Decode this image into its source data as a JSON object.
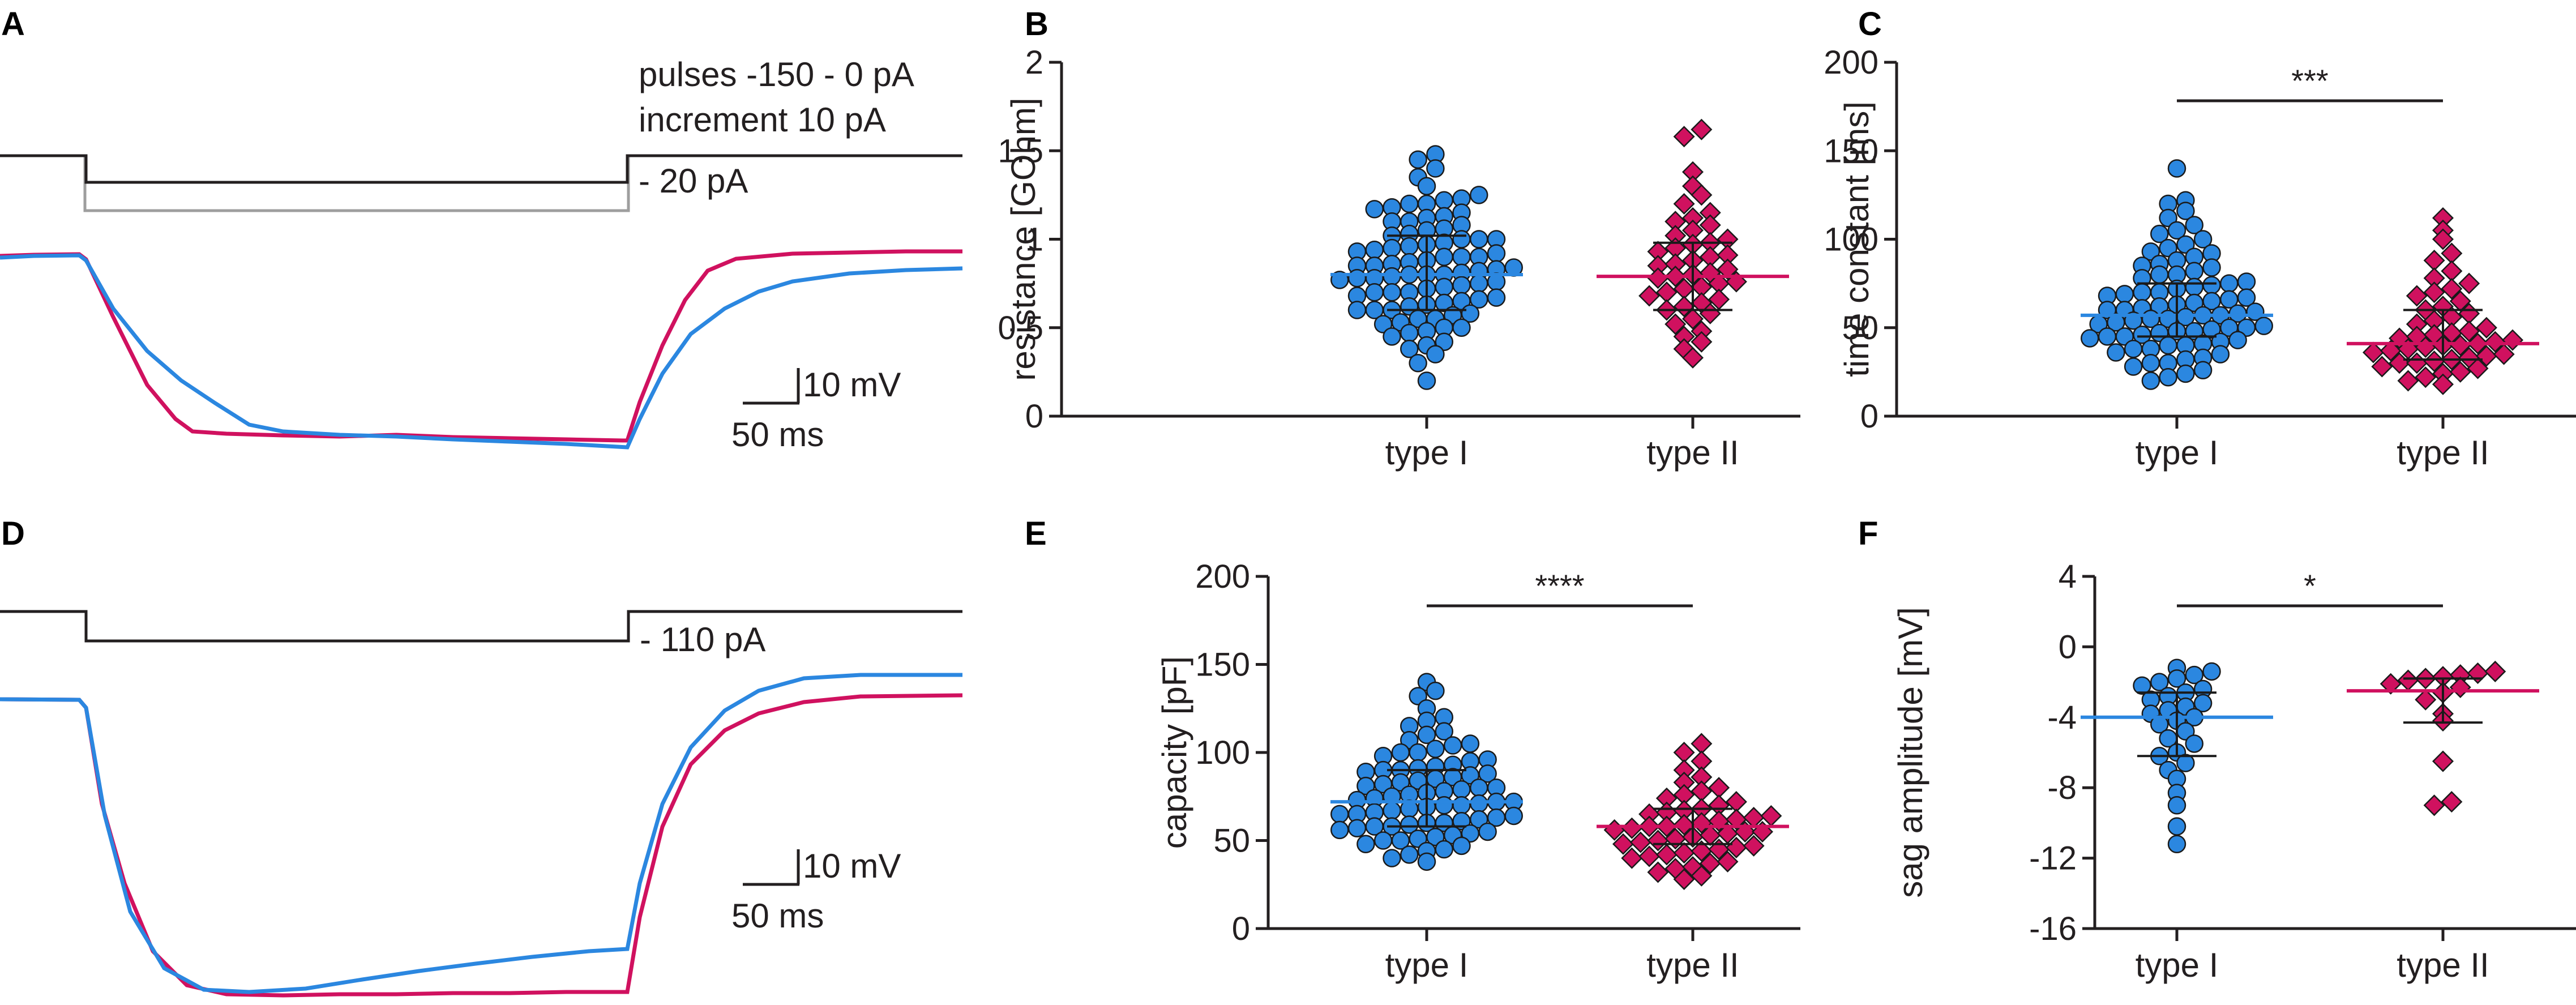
{
  "colors": {
    "type1": "#2b87e0",
    "type2": "#d0115f",
    "axis": "#231f20",
    "protocol_gray": "#9e9e9e"
  },
  "panel_labels": {
    "a": "A",
    "b": "B",
    "c": "C",
    "d": "D",
    "e": "E",
    "f": "F"
  },
  "trace_panels": {
    "a": {
      "protocol_line1": "pulses -150 - 0 pA",
      "protocol_line2": "increment 10 pA",
      "step_label": "- 20 pA",
      "scale_voltage": "10 mV",
      "scale_time": "50 ms"
    },
    "d": {
      "step_label": "- 110 pA",
      "scale_voltage": "10 mV",
      "scale_time": "50 ms"
    }
  },
  "chart_data": [
    {
      "id": "b",
      "type": "scatter",
      "title": "",
      "ylabel": "resistance [GOhm]",
      "categories": [
        "type I",
        "type II"
      ],
      "ylim": [
        0,
        2
      ],
      "yticks": [
        0,
        0.5,
        1,
        1.5,
        2
      ],
      "ytick_labels": [
        "0",
        "0.5",
        "1",
        "1.5",
        "2"
      ],
      "groups": [
        {
          "name": "type I",
          "marker": "circle",
          "median": 0.8,
          "q1": 0.6,
          "q3": 1.02,
          "values": [
            0.2,
            0.3,
            0.35,
            0.38,
            0.4,
            0.42,
            0.45,
            0.47,
            0.48,
            0.5,
            0.5,
            0.52,
            0.53,
            0.55,
            0.55,
            0.57,
            0.58,
            0.6,
            0.6,
            0.6,
            0.62,
            0.63,
            0.64,
            0.65,
            0.66,
            0.67,
            0.68,
            0.7,
            0.7,
            0.7,
            0.72,
            0.73,
            0.74,
            0.75,
            0.76,
            0.77,
            0.78,
            0.78,
            0.79,
            0.8,
            0.8,
            0.8,
            0.81,
            0.82,
            0.83,
            0.84,
            0.85,
            0.85,
            0.86,
            0.87,
            0.88,
            0.9,
            0.9,
            0.9,
            0.92,
            0.93,
            0.94,
            0.95,
            0.96,
            0.97,
            0.98,
            1.0,
            1.0,
            1.0,
            1.02,
            1.03,
            1.05,
            1.06,
            1.08,
            1.1,
            1.1,
            1.12,
            1.13,
            1.15,
            1.17,
            1.18,
            1.2,
            1.2,
            1.22,
            1.23,
            1.25,
            1.3,
            1.35,
            1.4,
            1.45,
            1.48
          ]
        },
        {
          "name": "type II",
          "marker": "diamond",
          "median": 0.79,
          "q1": 0.6,
          "q3": 0.98,
          "values": [
            0.33,
            0.38,
            0.42,
            0.45,
            0.48,
            0.52,
            0.55,
            0.58,
            0.6,
            0.62,
            0.64,
            0.66,
            0.68,
            0.7,
            0.72,
            0.73,
            0.75,
            0.76,
            0.78,
            0.79,
            0.8,
            0.81,
            0.83,
            0.85,
            0.86,
            0.88,
            0.9,
            0.91,
            0.93,
            0.95,
            0.97,
            0.98,
            1.0,
            1.02,
            1.05,
            1.08,
            1.1,
            1.12,
            1.15,
            1.2,
            1.25,
            1.3,
            1.38,
            1.58,
            1.62
          ]
        }
      ],
      "significance": null
    },
    {
      "id": "c",
      "type": "scatter",
      "title": "",
      "ylabel": "time constant [ms]",
      "categories": [
        "type I",
        "type II"
      ],
      "ylim": [
        0,
        200
      ],
      "yticks": [
        0,
        50,
        100,
        150,
        200
      ],
      "ytick_labels": [
        "0",
        "50",
        "100",
        "150",
        "200"
      ],
      "groups": [
        {
          "name": "type I",
          "marker": "circle",
          "median": 57,
          "q1": 45,
          "q3": 75,
          "values": [
            20,
            22,
            24,
            26,
            28,
            30,
            30,
            32,
            33,
            35,
            36,
            38,
            38,
            40,
            40,
            41,
            42,
            43,
            44,
            45,
            45,
            46,
            47,
            48,
            48,
            49,
            50,
            50,
            51,
            52,
            53,
            54,
            55,
            55,
            56,
            57,
            57,
            58,
            59,
            60,
            60,
            61,
            62,
            63,
            64,
            65,
            66,
            67,
            68,
            69,
            70,
            70,
            72,
            73,
            74,
            75,
            76,
            78,
            80,
            80,
            82,
            84,
            85,
            86,
            88,
            90,
            92,
            93,
            95,
            97,
            100,
            103,
            105,
            108,
            112,
            116,
            120,
            122,
            140
          ]
        },
        {
          "name": "type II",
          "marker": "diamond",
          "median": 41,
          "q1": 32,
          "q3": 60,
          "values": [
            18,
            20,
            22,
            24,
            25,
            27,
            28,
            30,
            30,
            31,
            32,
            33,
            34,
            35,
            36,
            37,
            38,
            39,
            40,
            40,
            41,
            42,
            43,
            44,
            45,
            46,
            47,
            48,
            50,
            52,
            54,
            56,
            58,
            60,
            62,
            65,
            68,
            70,
            72,
            75,
            78,
            82,
            88,
            92,
            100,
            105,
            112
          ]
        }
      ],
      "significance": {
        "label": "***"
      }
    },
    {
      "id": "e",
      "type": "scatter",
      "title": "",
      "ylabel": "capacity [pF]",
      "categories": [
        "type I",
        "type II"
      ],
      "ylim": [
        0,
        200
      ],
      "yticks": [
        0,
        50,
        100,
        150,
        200
      ],
      "ytick_labels": [
        "0",
        "50",
        "100",
        "150",
        "200"
      ],
      "groups": [
        {
          "name": "type I",
          "marker": "circle",
          "median": 72,
          "q1": 58,
          "q3": 90,
          "values": [
            38,
            40,
            42,
            44,
            45,
            47,
            48,
            50,
            50,
            51,
            52,
            53,
            54,
            55,
            56,
            57,
            58,
            58,
            59,
            60,
            60,
            61,
            62,
            63,
            64,
            65,
            65,
            66,
            67,
            68,
            69,
            70,
            70,
            71,
            72,
            72,
            73,
            74,
            75,
            76,
            77,
            78,
            79,
            80,
            80,
            81,
            82,
            83,
            84,
            85,
            86,
            87,
            88,
            89,
            90,
            90,
            91,
            92,
            93,
            95,
            96,
            98,
            100,
            100,
            102,
            104,
            105,
            107,
            110,
            112,
            115,
            118,
            120,
            125,
            132,
            135,
            140
          ]
        },
        {
          "name": "type II",
          "marker": "diamond",
          "median": 58,
          "q1": 48,
          "q3": 68,
          "values": [
            28,
            30,
            32,
            34,
            35,
            37,
            38,
            40,
            41,
            42,
            43,
            44,
            45,
            46,
            47,
            48,
            49,
            50,
            51,
            52,
            53,
            54,
            55,
            55,
            56,
            57,
            58,
            58,
            59,
            60,
            61,
            62,
            63,
            64,
            65,
            66,
            67,
            68,
            70,
            72,
            74,
            76,
            78,
            80,
            83,
            86,
            90,
            95,
            100,
            105
          ]
        }
      ],
      "significance": {
        "label": "****"
      }
    },
    {
      "id": "f",
      "type": "scatter",
      "title": "",
      "ylabel": "sag amplitude [mV]",
      "categories": [
        "type I",
        "type II"
      ],
      "ylim": [
        -16,
        4
      ],
      "yticks": [
        -16,
        -12,
        -8,
        -4,
        0,
        4
      ],
      "ytick_labels": [
        "-16",
        "-12",
        "-8",
        "-4",
        "0",
        "4"
      ],
      "groups": [
        {
          "name": "type I",
          "marker": "circle",
          "median": -4.0,
          "q1": -6.2,
          "q3": -2.6,
          "values": [
            -11.2,
            -10.2,
            -9.0,
            -8.3,
            -7.5,
            -7.0,
            -6.6,
            -6.2,
            -6.0,
            -5.5,
            -5.2,
            -4.8,
            -4.4,
            -4.2,
            -4.0,
            -3.8,
            -3.6,
            -3.4,
            -3.2,
            -3.0,
            -2.8,
            -2.6,
            -2.4,
            -2.2,
            -2.0,
            -1.8,
            -1.6,
            -1.4,
            -1.2
          ]
        },
        {
          "name": "type II",
          "marker": "diamond",
          "median": -2.5,
          "q1": -4.3,
          "q3": -1.8,
          "values": [
            -9.0,
            -8.8,
            -6.5,
            -4.2,
            -3.8,
            -3.0,
            -2.6,
            -2.3,
            -2.1,
            -1.9,
            -1.8,
            -1.7,
            -1.6,
            -1.5,
            -1.4
          ]
        }
      ],
      "significance": {
        "label": "*"
      }
    }
  ]
}
